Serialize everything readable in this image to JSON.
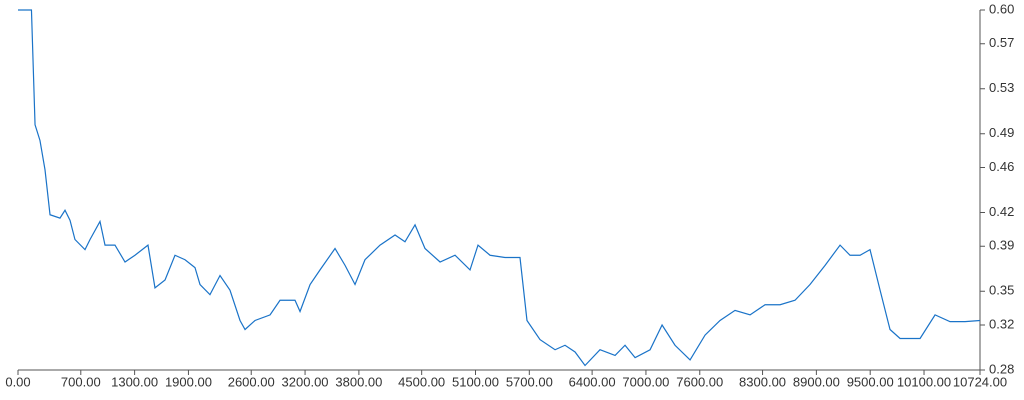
{
  "chart_data": {
    "type": "line",
    "color": "#1a73c8",
    "x": [
      0,
      150,
      190,
      245,
      301,
      357,
      468,
      524,
      580,
      635,
      747,
      803,
      914,
      970,
      1081,
      1193,
      1304,
      1449,
      1527,
      1639,
      1750,
      1862,
      1973,
      2029,
      2140,
      2252,
      2363,
      2475,
      2531,
      2642,
      2810,
      2921,
      3088,
      3144,
      3256,
      3367,
      3534,
      3646,
      3757,
      3868,
      4036,
      4203,
      4314,
      4426,
      4537,
      4705,
      4872,
      5039,
      5128,
      5262,
      5429,
      5596,
      5674,
      5819,
      5987,
      6098,
      6210,
      6321,
      6488,
      6656,
      6767,
      6879,
      7046,
      7180,
      7324,
      7492,
      7659,
      7826,
      7993,
      8161,
      8328,
      8495,
      8662,
      8829,
      8997,
      9164,
      9275,
      9387,
      9498,
      9610,
      9721,
      9833,
      10056,
      10223,
      10390,
      10557,
      10724
    ],
    "values": [
      0.6,
      0.6,
      0.498,
      0.484,
      0.458,
      0.418,
      0.415,
      0.422,
      0.413,
      0.396,
      0.387,
      0.396,
      0.412,
      0.391,
      0.391,
      0.376,
      0.382,
      0.391,
      0.353,
      0.36,
      0.382,
      0.378,
      0.371,
      0.356,
      0.347,
      0.364,
      0.351,
      0.324,
      0.316,
      0.324,
      0.329,
      0.342,
      0.342,
      0.332,
      0.356,
      0.369,
      0.388,
      0.373,
      0.356,
      0.378,
      0.391,
      0.4,
      0.394,
      0.409,
      0.388,
      0.376,
      0.382,
      0.369,
      0.391,
      0.382,
      0.38,
      0.38,
      0.324,
      0.307,
      0.298,
      0.302,
      0.296,
      0.284,
      0.298,
      0.293,
      0.302,
      0.291,
      0.298,
      0.32,
      0.302,
      0.289,
      0.311,
      0.324,
      0.333,
      0.329,
      0.338,
      0.338,
      0.342,
      0.356,
      0.373,
      0.391,
      0.382,
      0.382,
      0.387,
      0.351,
      0.316,
      0.308,
      0.308,
      0.329,
      0.323,
      0.323,
      0.324
    ],
    "xlim": [
      0,
      10724
    ],
    "xticks": [
      {
        "value": 0,
        "label": "0.00"
      },
      {
        "value": 700,
        "label": "700.00"
      },
      {
        "value": 1300,
        "label": "1300.00"
      },
      {
        "value": 1900,
        "label": "1900.00"
      },
      {
        "value": 2600,
        "label": "2600.00"
      },
      {
        "value": 3200,
        "label": "3200.00"
      },
      {
        "value": 3800,
        "label": "3800.00"
      },
      {
        "value": 4500,
        "label": "4500.00"
      },
      {
        "value": 5100,
        "label": "5100.00"
      },
      {
        "value": 5700,
        "label": "5700.00"
      },
      {
        "value": 6400,
        "label": "6400.00"
      },
      {
        "value": 7000,
        "label": "7000.00"
      },
      {
        "value": 7600,
        "label": "7600.00"
      },
      {
        "value": 8300,
        "label": "8300.00"
      },
      {
        "value": 8900,
        "label": "8900.00"
      },
      {
        "value": 9500,
        "label": "9500.00"
      },
      {
        "value": 10100,
        "label": "10100.00"
      },
      {
        "value": 10724,
        "label": "10724.00"
      }
    ],
    "ylim": [
      0.28,
      0.6
    ],
    "yticks": [
      {
        "value": 0.6,
        "label": "0.60"
      },
      0.57,
      0.53,
      0.49,
      0.46,
      0.42,
      0.39,
      0.35,
      0.32,
      0.28
    ]
  }
}
